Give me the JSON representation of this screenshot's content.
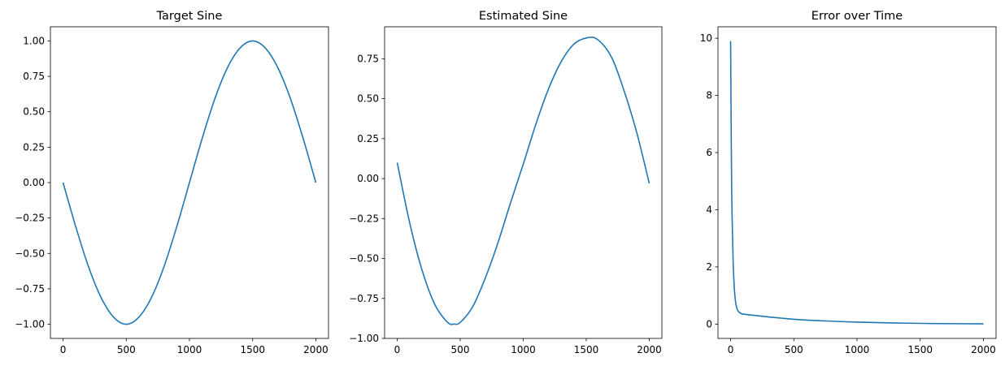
{
  "chart_data": [
    {
      "type": "line",
      "title": "Target Sine",
      "xlabel": "",
      "ylabel": "",
      "xlim": [
        -100,
        2100
      ],
      "ylim": [
        -1.1,
        1.1
      ],
      "xticks": [
        0,
        500,
        1000,
        1500,
        2000
      ],
      "xtick_labels": [
        "0",
        "500",
        "1000",
        "1500",
        "2000"
      ],
      "yticks": [
        -1.0,
        -0.75,
        -0.5,
        -0.25,
        0.0,
        0.25,
        0.5,
        0.75,
        1.0
      ],
      "ytick_labels": [
        "−1.00",
        "−0.75",
        "−0.50",
        "−0.25",
        "0.00",
        "0.25",
        "0.50",
        "0.75",
        "1.00"
      ],
      "grid": false,
      "series": [
        {
          "color": "#1f77b4",
          "x": [
            0,
            100,
            200,
            300,
            400,
            500,
            600,
            700,
            800,
            900,
            1000,
            1100,
            1200,
            1300,
            1400,
            1500,
            1600,
            1700,
            1800,
            1900,
            2000
          ],
          "y": [
            0.0,
            -0.31,
            -0.59,
            -0.81,
            -0.95,
            -1.0,
            -0.95,
            -0.81,
            -0.59,
            -0.31,
            0.0,
            0.31,
            0.59,
            0.81,
            0.95,
            1.0,
            0.95,
            0.81,
            0.59,
            0.31,
            0.0
          ]
        }
      ]
    },
    {
      "type": "line",
      "title": "Estimated Sine",
      "xlabel": "",
      "ylabel": "",
      "xlim": [
        -100,
        2100
      ],
      "ylim": [
        -1.0,
        0.95
      ],
      "xticks": [
        0,
        500,
        1000,
        1500,
        2000
      ],
      "xtick_labels": [
        "0",
        "500",
        "1000",
        "1500",
        "2000"
      ],
      "yticks": [
        -1.0,
        -0.75,
        -0.5,
        -0.25,
        0.0,
        0.25,
        0.5,
        0.75
      ],
      "ytick_labels": [
        "−1.00",
        "−0.75",
        "−0.50",
        "−0.25",
        "0.00",
        "0.25",
        "0.50",
        "0.75"
      ],
      "grid": false,
      "series": [
        {
          "color": "#1f77b4",
          "x": [
            0,
            100,
            200,
            300,
            400,
            450,
            500,
            600,
            700,
            800,
            900,
            1000,
            1100,
            1200,
            1300,
            1400,
            1500,
            1590,
            1700,
            1800,
            1900,
            2000
          ],
          "y": [
            0.1,
            -0.28,
            -0.58,
            -0.79,
            -0.9,
            -0.91,
            -0.9,
            -0.8,
            -0.62,
            -0.4,
            -0.15,
            0.09,
            0.34,
            0.56,
            0.73,
            0.84,
            0.88,
            0.87,
            0.76,
            0.55,
            0.29,
            -0.03
          ]
        }
      ]
    },
    {
      "type": "line",
      "title": "Error over Time",
      "xlabel": "",
      "ylabel": "",
      "xlim": [
        -100,
        2100
      ],
      "ylim": [
        -0.5,
        10.4
      ],
      "xticks": [
        0,
        500,
        1000,
        1500,
        2000
      ],
      "xtick_labels": [
        "0",
        "500",
        "1000",
        "1500",
        "2000"
      ],
      "yticks": [
        0,
        2,
        4,
        6,
        8,
        10
      ],
      "ytick_labels": [
        "0",
        "2",
        "4",
        "6",
        "8",
        "10"
      ],
      "grid": false,
      "series": [
        {
          "color": "#1f77b4",
          "x": [
            0,
            5,
            10,
            20,
            30,
            40,
            50,
            60,
            80,
            100,
            200,
            300,
            400,
            500,
            700,
            1000,
            1300,
            1600,
            2000
          ],
          "y": [
            9.9,
            6.5,
            4.2,
            2.2,
            1.2,
            0.75,
            0.55,
            0.45,
            0.38,
            0.35,
            0.3,
            0.25,
            0.21,
            0.17,
            0.12,
            0.07,
            0.04,
            0.02,
            0.01
          ]
        }
      ]
    }
  ]
}
